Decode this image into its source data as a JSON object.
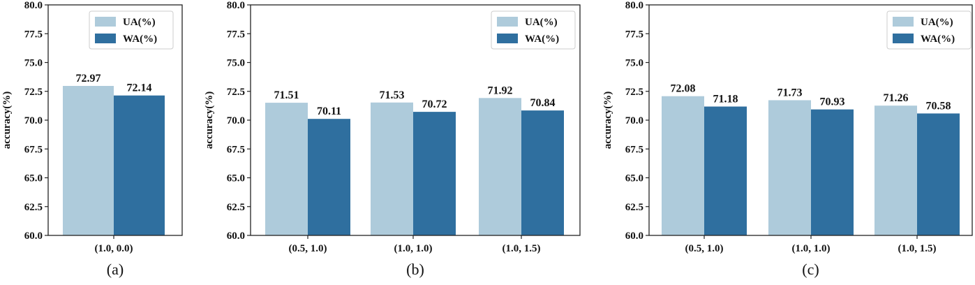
{
  "colors": {
    "ua": "#aecbdb",
    "wa": "#2f6f9f",
    "axis": "#222222"
  },
  "chart_data": [
    {
      "type": "bar",
      "caption": "(a)",
      "ylabel": "accuracy(%)",
      "ylim": [
        60,
        80
      ],
      "yticks": [
        "60.0",
        "62.5",
        "65.0",
        "67.5",
        "70.0",
        "72.5",
        "75.0",
        "77.5",
        "80.0"
      ],
      "categories": [
        "(1.0, 0.0)"
      ],
      "series": [
        {
          "name": "UA(%)",
          "values": [
            72.97
          ],
          "labels": [
            "72.97"
          ]
        },
        {
          "name": "WA(%)",
          "values": [
            72.14
          ],
          "labels": [
            "72.14"
          ]
        }
      ]
    },
    {
      "type": "bar",
      "caption": "(b)",
      "ylabel": "accuracy(%)",
      "ylim": [
        60,
        80
      ],
      "yticks": [
        "60.0",
        "62.5",
        "65.0",
        "67.5",
        "70.0",
        "72.5",
        "75.0",
        "77.5",
        "80.0"
      ],
      "categories": [
        "(0.5, 1.0)",
        "(1.0, 1.0)",
        "(1.0, 1.5)"
      ],
      "series": [
        {
          "name": "UA(%)",
          "values": [
            71.51,
            71.53,
            71.92
          ],
          "labels": [
            "71.51",
            "71.53",
            "71.92"
          ]
        },
        {
          "name": "WA(%)",
          "values": [
            70.11,
            70.72,
            70.84
          ],
          "labels": [
            "70.11",
            "70.72",
            "70.84"
          ]
        }
      ]
    },
    {
      "type": "bar",
      "caption": "(c)",
      "ylabel": "accuracy(%)",
      "ylim": [
        60,
        80
      ],
      "yticks": [
        "60.0",
        "62.5",
        "65.0",
        "67.5",
        "70.0",
        "72.5",
        "75.0",
        "77.5",
        "80.0"
      ],
      "categories": [
        "(0.5, 1.0)",
        "(1.0, 1.0)",
        "(1.0, 1.5)"
      ],
      "series": [
        {
          "name": "UA(%)",
          "values": [
            72.08,
            71.73,
            71.26
          ],
          "labels": [
            "72.08",
            "71.73",
            "71.26"
          ]
        },
        {
          "name": "WA(%)",
          "values": [
            71.18,
            70.93,
            70.58
          ],
          "labels": [
            "71.18",
            "70.93",
            "70.58"
          ]
        }
      ]
    }
  ]
}
